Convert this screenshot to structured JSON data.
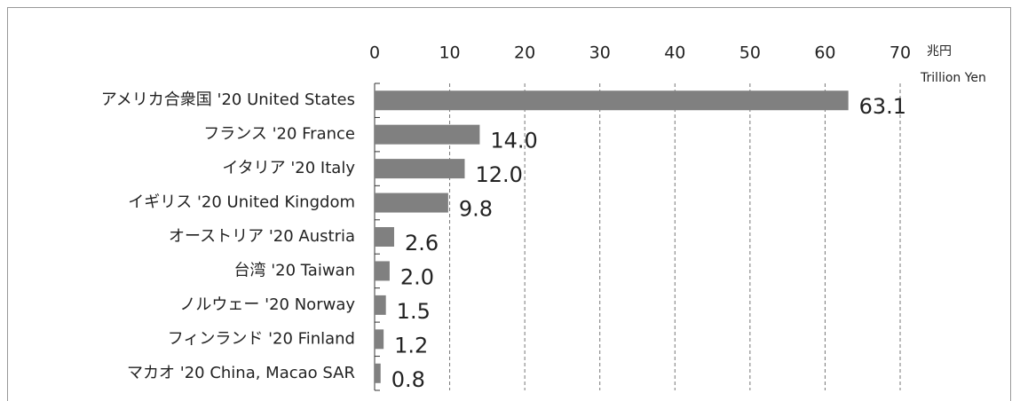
{
  "chart_data": {
    "type": "bar",
    "orientation": "horizontal",
    "categories": [
      "アメリカ合衆国 '20 United States",
      "フランス '20 France",
      "イタリア '20 Italy",
      "イギリス '20 United Kingdom",
      "オーストリア '20 Austria",
      "台湾 '20 Taiwan",
      "ノルウェー '20 Norway",
      "フィンランド '20 Finland",
      "マカオ '20 China, Macao SAR"
    ],
    "values": [
      63.1,
      14.0,
      12.0,
      9.8,
      2.6,
      2.0,
      1.5,
      1.2,
      0.8
    ],
    "value_labels": [
      "63.1",
      "14.0",
      "12.0",
      "9.8",
      "2.6",
      "2.0",
      "1.5",
      "1.2",
      "0.8"
    ],
    "color": "#808080",
    "xlim": [
      0,
      70
    ],
    "xticks": [
      0,
      10,
      20,
      30,
      40,
      50,
      60,
      70
    ],
    "grid": true,
    "xlabel": "兆円",
    "xlabel_sub": "Trillion Yen"
  }
}
